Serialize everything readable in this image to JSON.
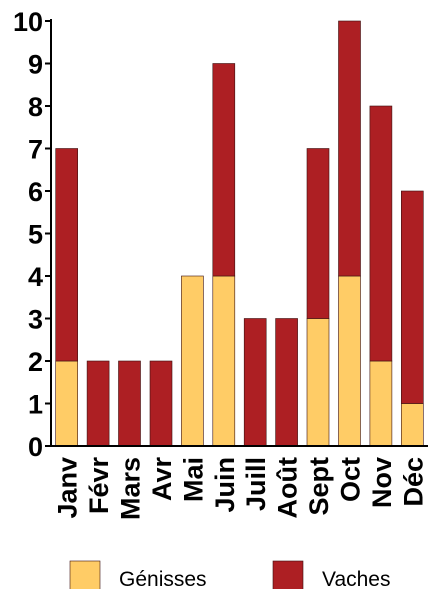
{
  "chart_data": {
    "type": "bar",
    "stacked": true,
    "categories": [
      "Janv",
      "Févr",
      "Mars",
      "Avr",
      "Mai",
      "Juin",
      "Juill",
      "Août",
      "Sept",
      "Oct",
      "Nov",
      "Déc"
    ],
    "series": [
      {
        "name": "Génisses",
        "color": "#FFCC66",
        "values": [
          2,
          0,
          0,
          0,
          4,
          4,
          0,
          0,
          3,
          4,
          2,
          1
        ]
      },
      {
        "name": "Vaches",
        "color": "#AD1F23",
        "values": [
          5,
          2,
          2,
          2,
          0,
          5,
          3,
          3,
          4,
          6,
          6,
          5
        ]
      }
    ],
    "title": "",
    "xlabel": "",
    "ylabel": "",
    "ylim": [
      0,
      10
    ],
    "yticks": [
      "0",
      "1",
      "2",
      "3",
      "4",
      "5",
      "6",
      "7",
      "8",
      "9",
      "10"
    ],
    "grid": false,
    "legend_position": "bottom"
  }
}
